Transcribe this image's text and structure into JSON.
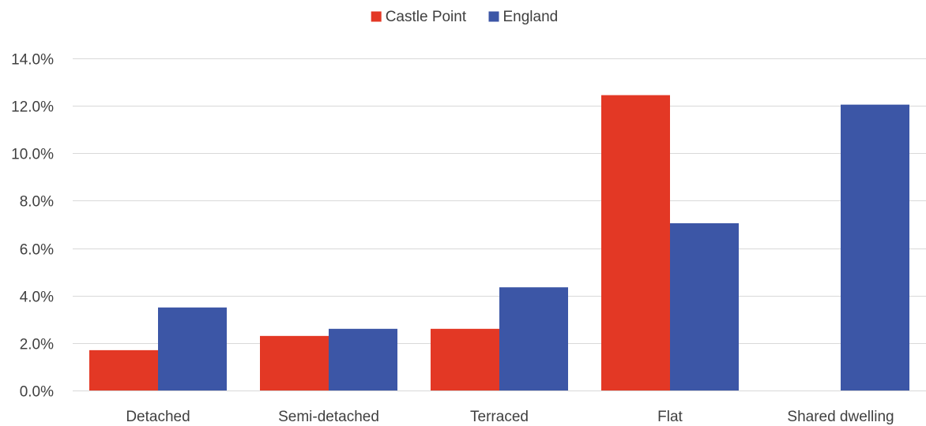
{
  "chart_data": {
    "type": "bar",
    "categories": [
      "Detached",
      "Semi-detached",
      "Terraced",
      "Flat",
      "Shared dwelling"
    ],
    "series": [
      {
        "name": "Castle Point",
        "color": "#e33825",
        "values": [
          0.017,
          0.023,
          0.026,
          0.1245,
          0
        ]
      },
      {
        "name": "England",
        "color": "#3c56a6",
        "values": [
          0.035,
          0.026,
          0.0435,
          0.0705,
          0.1205
        ]
      }
    ],
    "ylim": [
      0,
      0.14
    ],
    "yticks": [
      0,
      0.02,
      0.04,
      0.06,
      0.08,
      0.1,
      0.12,
      0.14
    ],
    "ytick_labels": [
      "0.0%",
      "2.0%",
      "4.0%",
      "6.0%",
      "8.0%",
      "10.0%",
      "12.0%",
      "14.0%"
    ],
    "grid": true,
    "legend_position": "top-center",
    "title": "",
    "xlabel": "",
    "ylabel": ""
  }
}
